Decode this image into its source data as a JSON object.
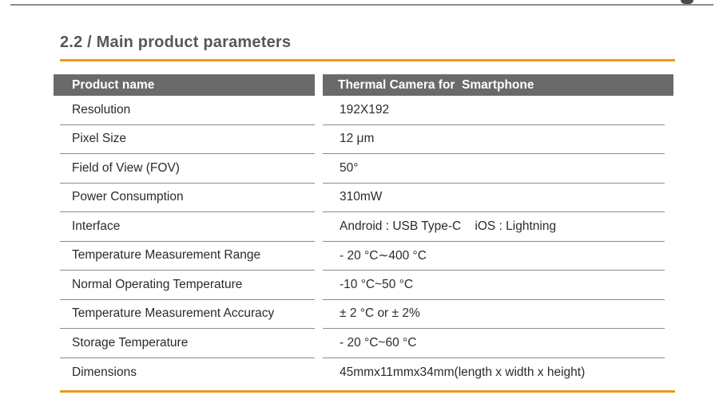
{
  "colors": {
    "accent_orange": "#EE9A16",
    "header_gray": "#6A6A6A",
    "line_gray": "#8A8A8A",
    "sep_gray": "#8C8C8C",
    "title_gray": "#595757",
    "text_dark": "#2B2B2B"
  },
  "section": {
    "title": "2.2 / Main product parameters"
  },
  "table": {
    "header": {
      "col1": "Product name",
      "col2": "Thermal Camera for  Smartphone"
    },
    "rows": [
      {
        "label": "Resolution",
        "value": "192X192"
      },
      {
        "label": "Pixel Size",
        "value": "12 μm"
      },
      {
        "label": "Field of View (FOV)",
        "value": "50°"
      },
      {
        "label": "Power Consumption",
        "value": "310mW"
      },
      {
        "label": "Interface",
        "value": "Android : USB Type-C    iOS : Lightning"
      },
      {
        "label": "Temperature Measurement Range",
        "value": "- 20 °C∼400 °C"
      },
      {
        "label": "Normal Operating Temperature",
        "value": "-10 °C~50 °C"
      },
      {
        "label": "Temperature Measurement Accuracy",
        "value": "± 2 °C or ± 2%"
      },
      {
        "label": "Storage Temperature",
        "value": "- 20 °C~60 °C"
      },
      {
        "label": "Dimensions",
        "value": "45mmx11mmx34mm(length x width x height)"
      }
    ]
  }
}
